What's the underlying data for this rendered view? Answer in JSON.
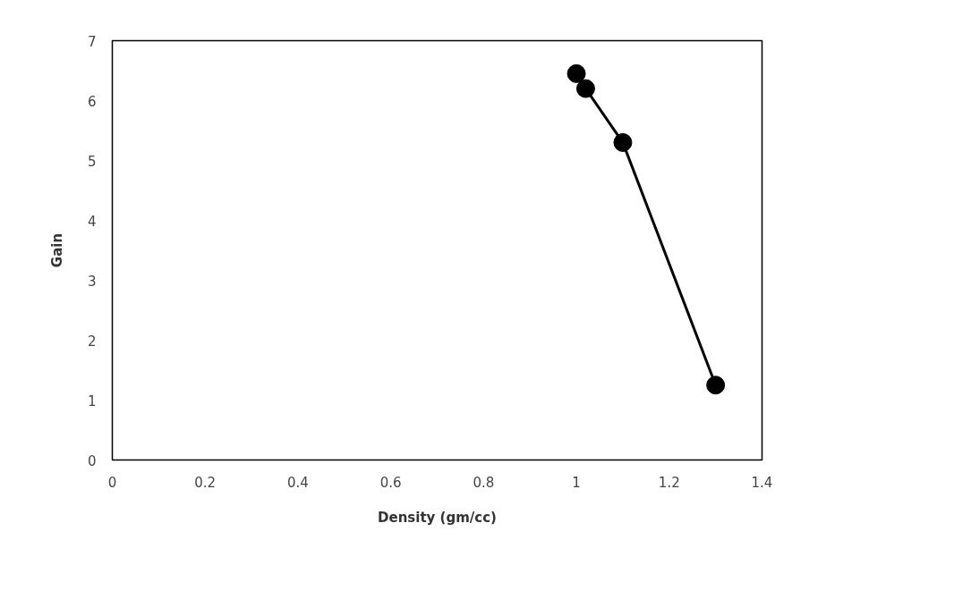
{
  "chart_data": {
    "type": "line",
    "xlabel": "Density (gm/cc)",
    "ylabel": "Gain",
    "x": [
      1.0,
      1.02,
      1.1,
      1.3
    ],
    "series": [
      {
        "color": "#000000",
        "values": [
          6.45,
          6.2,
          5.3,
          1.25
        ]
      }
    ],
    "xlim": [
      0,
      1.4
    ],
    "ylim": [
      0,
      7
    ],
    "xticks": [
      0,
      0.2,
      0.4,
      0.6,
      0.8,
      1,
      1.2,
      1.4
    ],
    "yticks": [
      0,
      1,
      2,
      3,
      4,
      5,
      6,
      7
    ],
    "grid": false,
    "marker": "circle",
    "line_style": "solid"
  }
}
